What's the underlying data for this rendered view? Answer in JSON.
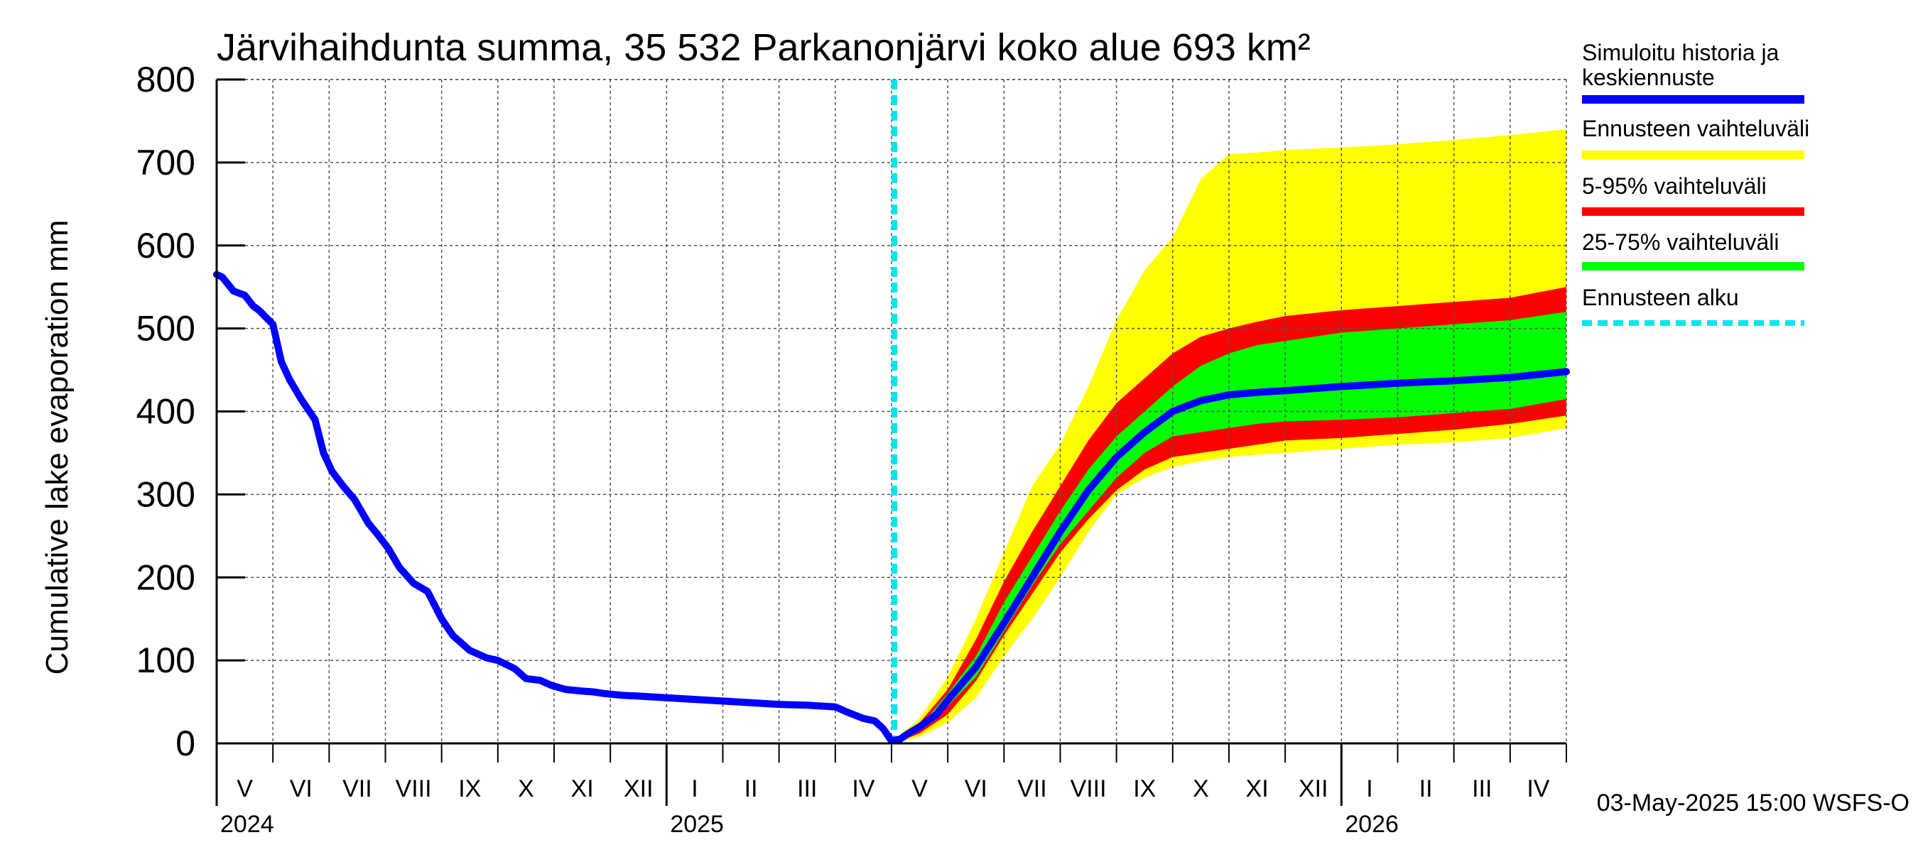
{
  "chart_data": {
    "type": "area",
    "title": "Järvihaihdunta summa, 35 532 Parkanonjärvi koko alue 693 km²",
    "ylabel": "Cumulative lake evaporation   mm",
    "xlabel": "",
    "ylim": [
      0,
      800
    ],
    "yticks": [
      0,
      100,
      200,
      300,
      400,
      500,
      600,
      700,
      800
    ],
    "x_unit": "months since 2024-05-01",
    "xlim": [
      0,
      24.0
    ],
    "grid": true,
    "months": [
      {
        "label": "V",
        "start": 0,
        "end": 1
      },
      {
        "label": "VI",
        "start": 1,
        "end": 2
      },
      {
        "label": "VII",
        "start": 2,
        "end": 3
      },
      {
        "label": "VIII",
        "start": 3,
        "end": 4
      },
      {
        "label": "IX",
        "start": 4,
        "end": 5
      },
      {
        "label": "X",
        "start": 5,
        "end": 6
      },
      {
        "label": "XI",
        "start": 6,
        "end": 7
      },
      {
        "label": "XII",
        "start": 7,
        "end": 8
      },
      {
        "label": "I",
        "start": 8,
        "end": 9
      },
      {
        "label": "II",
        "start": 9,
        "end": 10
      },
      {
        "label": "III",
        "start": 10,
        "end": 11
      },
      {
        "label": "IV",
        "start": 11,
        "end": 12
      },
      {
        "label": "V",
        "start": 12,
        "end": 13
      },
      {
        "label": "VI",
        "start": 13,
        "end": 14
      },
      {
        "label": "VII",
        "start": 14,
        "end": 15
      },
      {
        "label": "VIII",
        "start": 15,
        "end": 16
      },
      {
        "label": "IX",
        "start": 16,
        "end": 17
      },
      {
        "label": "X",
        "start": 17,
        "end": 18
      },
      {
        "label": "XI",
        "start": 18,
        "end": 19
      },
      {
        "label": "XII",
        "start": 19,
        "end": 20
      },
      {
        "label": "I",
        "start": 20,
        "end": 21
      },
      {
        "label": "II",
        "start": 21,
        "end": 22
      },
      {
        "label": "III",
        "start": 22,
        "end": 23
      },
      {
        "label": "IV",
        "start": 23,
        "end": 24
      }
    ],
    "years": [
      {
        "label": "2024",
        "x": 0
      },
      {
        "label": "2025",
        "x": 8
      },
      {
        "label": "2026",
        "x": 20
      }
    ],
    "forecast_start": 12.05,
    "series": [
      {
        "name": "Simuloitu historia ja keskiennuste",
        "color": "#0000ff",
        "x": [
          0,
          0.1,
          0.3,
          0.5,
          0.65,
          0.75,
          1.0,
          1.15,
          1.3,
          1.5,
          1.75,
          1.9,
          2.05,
          2.25,
          2.45,
          2.7,
          2.85,
          3.05,
          3.25,
          3.5,
          3.75,
          4.0,
          4.2,
          4.5,
          4.8,
          5.0,
          5.3,
          5.5,
          5.75,
          5.95,
          6.2,
          6.5,
          6.7,
          6.9,
          7.2,
          7.5,
          8.0,
          8.5,
          9.0,
          9.5,
          10.0,
          10.5,
          11.0,
          11.2,
          11.5,
          11.7,
          11.85,
          12.0,
          12.15,
          12.3,
          12.5,
          12.8,
          13.0,
          13.5,
          14.0,
          14.5,
          15.0,
          15.5,
          16.0,
          16.5,
          17.0,
          17.5,
          18.0,
          18.5,
          19.0,
          20.0,
          21.0,
          22.0,
          23.0,
          24.0
        ],
        "values": [
          565,
          562,
          545,
          540,
          527,
          522,
          505,
          460,
          438,
          415,
          390,
          350,
          328,
          310,
          294,
          265,
          253,
          235,
          212,
          193,
          183,
          150,
          130,
          112,
          103,
          100,
          90,
          78,
          76,
          70,
          65,
          63,
          62,
          60,
          58,
          57,
          55,
          53,
          51,
          49,
          47,
          46,
          44,
          38,
          30,
          27,
          18,
          3,
          5,
          12,
          20,
          35,
          52,
          92,
          145,
          200,
          255,
          305,
          345,
          375,
          400,
          413,
          420,
          423,
          425,
          430,
          434,
          437,
          441,
          448
        ]
      },
      {
        "name": "Ennusteen vaihteluväli",
        "color": "#ffff00",
        "x": [
          12.05,
          12.5,
          13.0,
          13.5,
          14.0,
          14.5,
          15.0,
          15.5,
          16.0,
          16.5,
          17.0,
          17.5,
          18.0,
          18.5,
          19.0,
          20.0,
          21.0,
          22.0,
          23.0,
          24.0
        ],
        "upper": [
          5,
          30,
          80,
          150,
          230,
          310,
          360,
          430,
          510,
          570,
          610,
          680,
          710,
          712,
          715,
          718,
          722,
          727,
          733,
          740
        ],
        "lower": [
          0,
          8,
          25,
          55,
          105,
          150,
          200,
          255,
          300,
          320,
          333,
          340,
          345,
          348,
          350,
          355,
          360,
          363,
          368,
          380
        ]
      },
      {
        "name": "5-95% vaihteluväli",
        "color": "#ff0000",
        "x": [
          12.05,
          12.5,
          13.0,
          13.5,
          14.0,
          14.5,
          15.0,
          15.5,
          16.0,
          16.5,
          17.0,
          17.5,
          18.0,
          18.5,
          19.0,
          20.0,
          21.0,
          22.0,
          23.0,
          24.0
        ],
        "upper": [
          5,
          25,
          65,
          125,
          195,
          255,
          310,
          365,
          410,
          440,
          470,
          490,
          500,
          508,
          515,
          522,
          527,
          532,
          537,
          550
        ],
        "lower": [
          0,
          12,
          35,
          75,
          130,
          180,
          230,
          270,
          305,
          330,
          345,
          350,
          355,
          360,
          365,
          368,
          373,
          378,
          385,
          395
        ]
      },
      {
        "name": "25-75% vaihteluväli",
        "color": "#00ff00",
        "x": [
          12.05,
          12.5,
          13.0,
          13.5,
          14.0,
          14.5,
          15.0,
          15.5,
          16.0,
          16.5,
          17.0,
          17.5,
          18.0,
          18.5,
          19.0,
          20.0,
          21.0,
          22.0,
          23.0,
          24.0
        ],
        "upper": [
          5,
          20,
          60,
          105,
          170,
          225,
          280,
          330,
          370,
          400,
          430,
          455,
          470,
          480,
          485,
          495,
          500,
          505,
          510,
          520
        ],
        "lower": [
          2,
          15,
          45,
          80,
          135,
          190,
          240,
          280,
          320,
          350,
          370,
          375,
          380,
          385,
          388,
          390,
          393,
          398,
          403,
          415
        ]
      }
    ],
    "legend": [
      {
        "label": "Simuloitu historia ja keskiennuste",
        "color": "#0000ff",
        "style": "solid"
      },
      {
        "label": "Ennusteen vaihteluväli",
        "color": "#ffff00",
        "style": "solid"
      },
      {
        "label": "5-95% vaihteluväli",
        "color": "#ff0000",
        "style": "solid"
      },
      {
        "label": "25-75% vaihteluväli",
        "color": "#00ff00",
        "style": "solid"
      },
      {
        "label": "Ennusteen alku",
        "color": "#00e5ee",
        "style": "dashed"
      }
    ],
    "legend_position": "right",
    "footer": "03-May-2025 15:00 WSFS-O"
  }
}
